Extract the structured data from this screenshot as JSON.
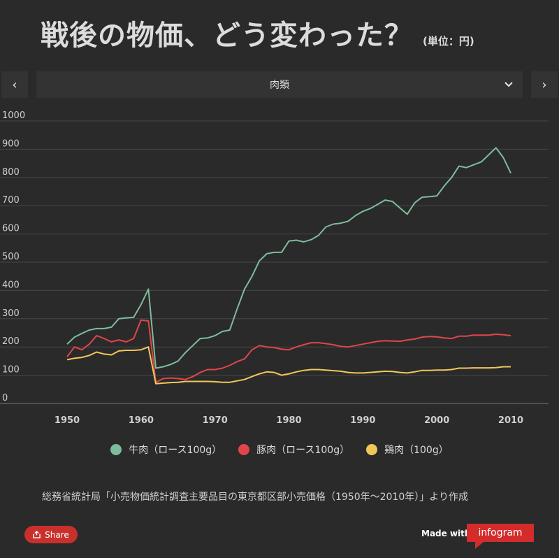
{
  "header": {
    "title": "戦後の物価、どう変わった？",
    "unit": "(単位：円)"
  },
  "nav": {
    "prev_icon": "chevron-left-icon",
    "next_icon": "chevron-right-icon",
    "prev_glyph": "‹",
    "next_glyph": "›"
  },
  "selector": {
    "selected": "肉類"
  },
  "chart_data": {
    "type": "line",
    "title": "",
    "xlabel": "",
    "ylabel": "",
    "xlim": [
      1945,
      2015
    ],
    "ylim": [
      0,
      1000
    ],
    "yticks": [
      "0",
      "100",
      "200",
      "300",
      "400",
      "500",
      "600",
      "700",
      "800",
      "900",
      "1000"
    ],
    "xticks": [
      "1950",
      "1960",
      "1970",
      "1980",
      "1990",
      "2000",
      "2010"
    ],
    "x": [
      1950,
      1951,
      1952,
      1953,
      1954,
      1955,
      1956,
      1957,
      1958,
      1959,
      1960,
      1961,
      1962,
      1963,
      1964,
      1965,
      1966,
      1967,
      1968,
      1969,
      1970,
      1971,
      1972,
      1973,
      1974,
      1975,
      1976,
      1977,
      1978,
      1979,
      1980,
      1981,
      1982,
      1983,
      1984,
      1985,
      1986,
      1987,
      1988,
      1989,
      1990,
      1991,
      1992,
      1993,
      1994,
      1995,
      1996,
      1997,
      1998,
      1999,
      2000,
      2001,
      2002,
      2003,
      2004,
      2005,
      2006,
      2007,
      2008,
      2009,
      2010
    ],
    "series": [
      {
        "name": "牛肉（ロース100g）",
        "color": "#7dbc9c",
        "values": [
          210,
          235,
          248,
          260,
          265,
          265,
          270,
          300,
          303,
          305,
          350,
          405,
          125,
          130,
          138,
          150,
          180,
          205,
          230,
          232,
          240,
          255,
          260,
          335,
          405,
          450,
          505,
          530,
          535,
          535,
          575,
          578,
          572,
          580,
          595,
          625,
          635,
          638,
          645,
          665,
          680,
          690,
          705,
          720,
          715,
          692,
          670,
          710,
          730,
          732,
          735,
          770,
          800,
          840,
          835,
          845,
          855,
          880,
          905,
          870,
          815
        ]
      },
      {
        "name": "豚肉（ロース100g）",
        "color": "#e0454c",
        "values": [
          165,
          200,
          190,
          210,
          240,
          230,
          218,
          225,
          218,
          230,
          295,
          292,
          75,
          88,
          90,
          88,
          85,
          95,
          110,
          120,
          120,
          125,
          135,
          148,
          158,
          190,
          205,
          200,
          198,
          192,
          190,
          200,
          208,
          215,
          215,
          212,
          208,
          202,
          200,
          205,
          210,
          215,
          220,
          222,
          221,
          220,
          225,
          228,
          235,
          237,
          236,
          232,
          230,
          238,
          238,
          242,
          242,
          242,
          245,
          243,
          240
        ]
      },
      {
        "name": "鶏肉（100g）",
        "color": "#f2c75a",
        "values": [
          155,
          160,
          163,
          170,
          182,
          175,
          172,
          186,
          188,
          188,
          190,
          200,
          70,
          72,
          74,
          75,
          78,
          78,
          78,
          78,
          77,
          75,
          75,
          80,
          85,
          95,
          105,
          112,
          110,
          100,
          105,
          112,
          117,
          120,
          120,
          118,
          116,
          114,
          110,
          108,
          108,
          110,
          112,
          114,
          113,
          110,
          108,
          112,
          117,
          117,
          118,
          118,
          120,
          125,
          125,
          126,
          126,
          126,
          127,
          130,
          130
        ]
      }
    ]
  },
  "legend": [
    {
      "label": "牛肉（ロース100g）",
      "color": "#7dbc9c"
    },
    {
      "label": "豚肉（ロース100g）",
      "color": "#e0454c"
    },
    {
      "label": "鶏肉（100g）",
      "color": "#f2c75a"
    }
  ],
  "source": "総務省統計局「小売物価統計調査主要品目の東京都区部小売価格（1950年〜2010年）」より作成",
  "footer": {
    "share_label": "Share",
    "made_with": "Made with",
    "brand": "infogram"
  }
}
